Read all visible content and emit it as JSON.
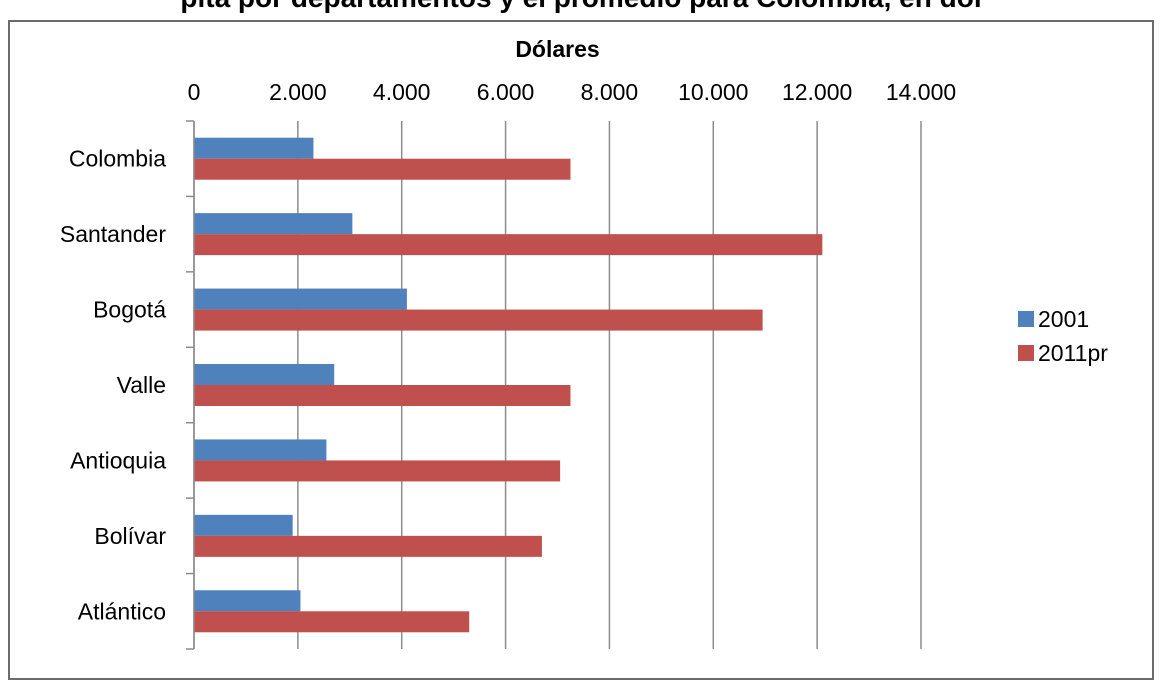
{
  "header": {
    "title_fragment": "pita por departamentos y el promedio para Colombia, en dól"
  },
  "chart_data": {
    "type": "bar",
    "orientation": "horizontal",
    "xlabel": "Dólares",
    "xlim": [
      0,
      14000
    ],
    "x_ticks": [
      0,
      2000,
      4000,
      6000,
      8000,
      10000,
      12000,
      14000
    ],
    "x_tick_labels": [
      "0",
      "2.000",
      "4.000",
      "6.000",
      "8.000",
      "10.000",
      "12.000",
      "14.000"
    ],
    "categories": [
      "Colombia",
      "Santander",
      "Bogotá",
      "Valle",
      "Antioquia",
      "Bolívar",
      "Atlántico"
    ],
    "series": [
      {
        "name": "2001",
        "color": "#4f81bd",
        "values": [
          2300,
          3050,
          4100,
          2700,
          2550,
          1900,
          2050
        ]
      },
      {
        "name": "2011pr",
        "color": "#c0504d",
        "values": [
          7250,
          12100,
          10950,
          7250,
          7050,
          6700,
          5300
        ]
      }
    ],
    "grid": "vertical",
    "legend_position": "right"
  }
}
